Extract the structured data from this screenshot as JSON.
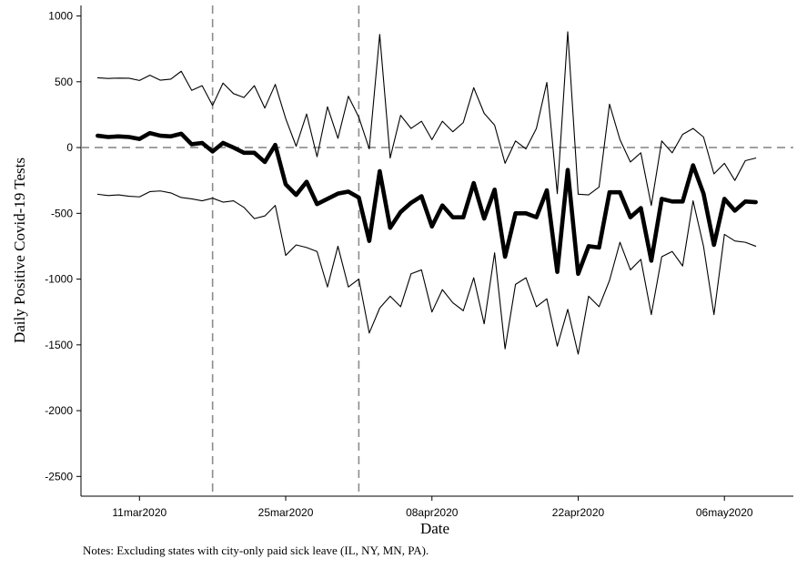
{
  "chart_data": {
    "type": "line",
    "xlabel": "Date",
    "ylabel": "Daily Positive Covid-19 Tests",
    "note": "Notes: Excluding states with city-only paid sick leave (IL, NY, MN, PA).",
    "x_start_date": "2020-03-07",
    "x_tick_labels": [
      "11mar2020",
      "25mar2020",
      "08apr2020",
      "22apr2020",
      "06may2020"
    ],
    "x_tick_days": [
      4,
      18,
      32,
      46,
      60
    ],
    "xlim": [
      -1.6,
      66.6
    ],
    "ylim": [
      -2650,
      1080
    ],
    "y_ticks": [
      1000,
      500,
      0,
      -500,
      -1000,
      -1500,
      -2000,
      -2500
    ],
    "y_tick_labels": [
      "1000",
      "500",
      "0",
      "-500",
      "-1000",
      "-1500",
      "-2000",
      "-2500"
    ],
    "vlines_days": [
      11,
      25
    ],
    "hline_value": 0,
    "grid": false,
    "legend": "none",
    "series": [
      {
        "role": "upper-ci",
        "values": [
          530,
          525,
          528,
          527,
          510,
          550,
          512,
          520,
          580,
          435,
          470,
          320,
          490,
          410,
          380,
          470,
          300,
          480,
          220,
          10,
          255,
          -70,
          310,
          70,
          390,
          230,
          -10,
          860,
          -80,
          245,
          145,
          200,
          60,
          200,
          120,
          190,
          455,
          260,
          170,
          -120,
          50,
          -10,
          145,
          495,
          -350,
          880,
          -355,
          -360,
          -300,
          330,
          60,
          -110,
          -40,
          -440,
          50,
          -40,
          100,
          145,
          80,
          -200,
          -120,
          -250,
          -100,
          -80
        ]
      },
      {
        "role": "point-estimate",
        "values": [
          90,
          80,
          85,
          80,
          65,
          110,
          90,
          85,
          105,
          25,
          35,
          -30,
          35,
          0,
          -40,
          -40,
          -110,
          20,
          -280,
          -360,
          -260,
          -430,
          -390,
          -350,
          -335,
          -380,
          -710,
          -180,
          -610,
          -490,
          -420,
          -370,
          -600,
          -440,
          -530,
          -530,
          -270,
          -540,
          -320,
          -830,
          -500,
          -500,
          -530,
          -325,
          -945,
          -170,
          -960,
          -750,
          -760,
          -340,
          -340,
          -530,
          -460,
          -860,
          -390,
          -410,
          -410,
          -135,
          -350,
          -740,
          -390,
          -480,
          -410,
          -415
        ]
      },
      {
        "role": "lower-ci",
        "values": [
          -355,
          -365,
          -360,
          -370,
          -375,
          -335,
          -330,
          -345,
          -380,
          -390,
          -405,
          -385,
          -415,
          -405,
          -455,
          -540,
          -520,
          -440,
          -820,
          -740,
          -760,
          -790,
          -1060,
          -750,
          -1060,
          -1000,
          -1410,
          -1220,
          -1130,
          -1210,
          -960,
          -930,
          -1250,
          -1080,
          -1180,
          -1240,
          -990,
          -1340,
          -800,
          -1530,
          -1040,
          -990,
          -1210,
          -1150,
          -1510,
          -1230,
          -1570,
          -1130,
          -1210,
          -1010,
          -720,
          -930,
          -850,
          -1270,
          -830,
          -790,
          -900,
          -405,
          -750,
          -1270,
          -660,
          -710,
          -720,
          -750
        ]
      }
    ]
  }
}
